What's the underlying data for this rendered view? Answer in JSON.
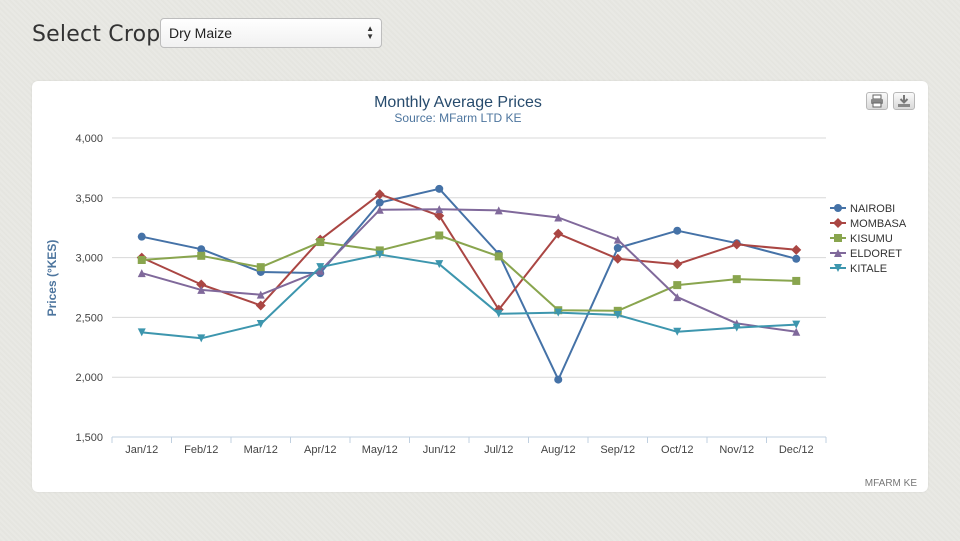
{
  "crop_selector": {
    "label": "Select Crop :",
    "selected": "Dry Maize"
  },
  "credits": "MFARM KE",
  "colors": {
    "background": "#e9e9e4",
    "grid": "#d8d8d8",
    "axis_text": "#444444",
    "title": "#274b6d",
    "subtitle": "#4d759e"
  },
  "chart_data": {
    "type": "line",
    "title": "Monthly Average Prices",
    "subtitle": "Source: MFarm LTD KE",
    "xlabel": "",
    "ylabel": "Prices (°KES)",
    "ylim": [
      1500,
      4000
    ],
    "yticks": [
      1500,
      2000,
      2500,
      3000,
      3500,
      4000
    ],
    "ytick_labels": [
      "1,500",
      "2,000",
      "2,500",
      "3,000",
      "3,500",
      "4,000"
    ],
    "grid": true,
    "legend_position": "right",
    "categories": [
      "Jan/12",
      "Feb/12",
      "Mar/12",
      "Apr/12",
      "May/12",
      "Jun/12",
      "Jul/12",
      "Aug/12",
      "Sep/12",
      "Oct/12",
      "Nov/12",
      "Dec/12"
    ],
    "series": [
      {
        "name": "NAIROBI",
        "color": "#4572a7",
        "marker": "circle",
        "values": [
          3175,
          3070,
          2880,
          2870,
          3460,
          3575,
          3030,
          1980,
          3080,
          3225,
          3120,
          2990
        ]
      },
      {
        "name": "MOMBASA",
        "color": "#aa4643",
        "marker": "diamond",
        "values": [
          3000,
          2775,
          2600,
          3150,
          3530,
          3350,
          2565,
          3200,
          2990,
          2945,
          3110,
          3065
        ]
      },
      {
        "name": "KISUMU",
        "color": "#89a54e",
        "marker": "square",
        "values": [
          2980,
          3015,
          2920,
          3130,
          3060,
          3185,
          3010,
          2560,
          2555,
          2770,
          2820,
          2805
        ]
      },
      {
        "name": "ELDORET",
        "color": "#80699b",
        "marker": "triangle",
        "values": [
          2870,
          2730,
          2690,
          2890,
          3400,
          3405,
          3395,
          3335,
          3150,
          2670,
          2450,
          2380
        ]
      },
      {
        "name": "KITALE",
        "color": "#3d96ae",
        "marker": "triangle-down",
        "values": [
          2375,
          2325,
          2445,
          2920,
          3025,
          2945,
          2530,
          2540,
          2520,
          2380,
          2415,
          2440
        ]
      }
    ]
  }
}
